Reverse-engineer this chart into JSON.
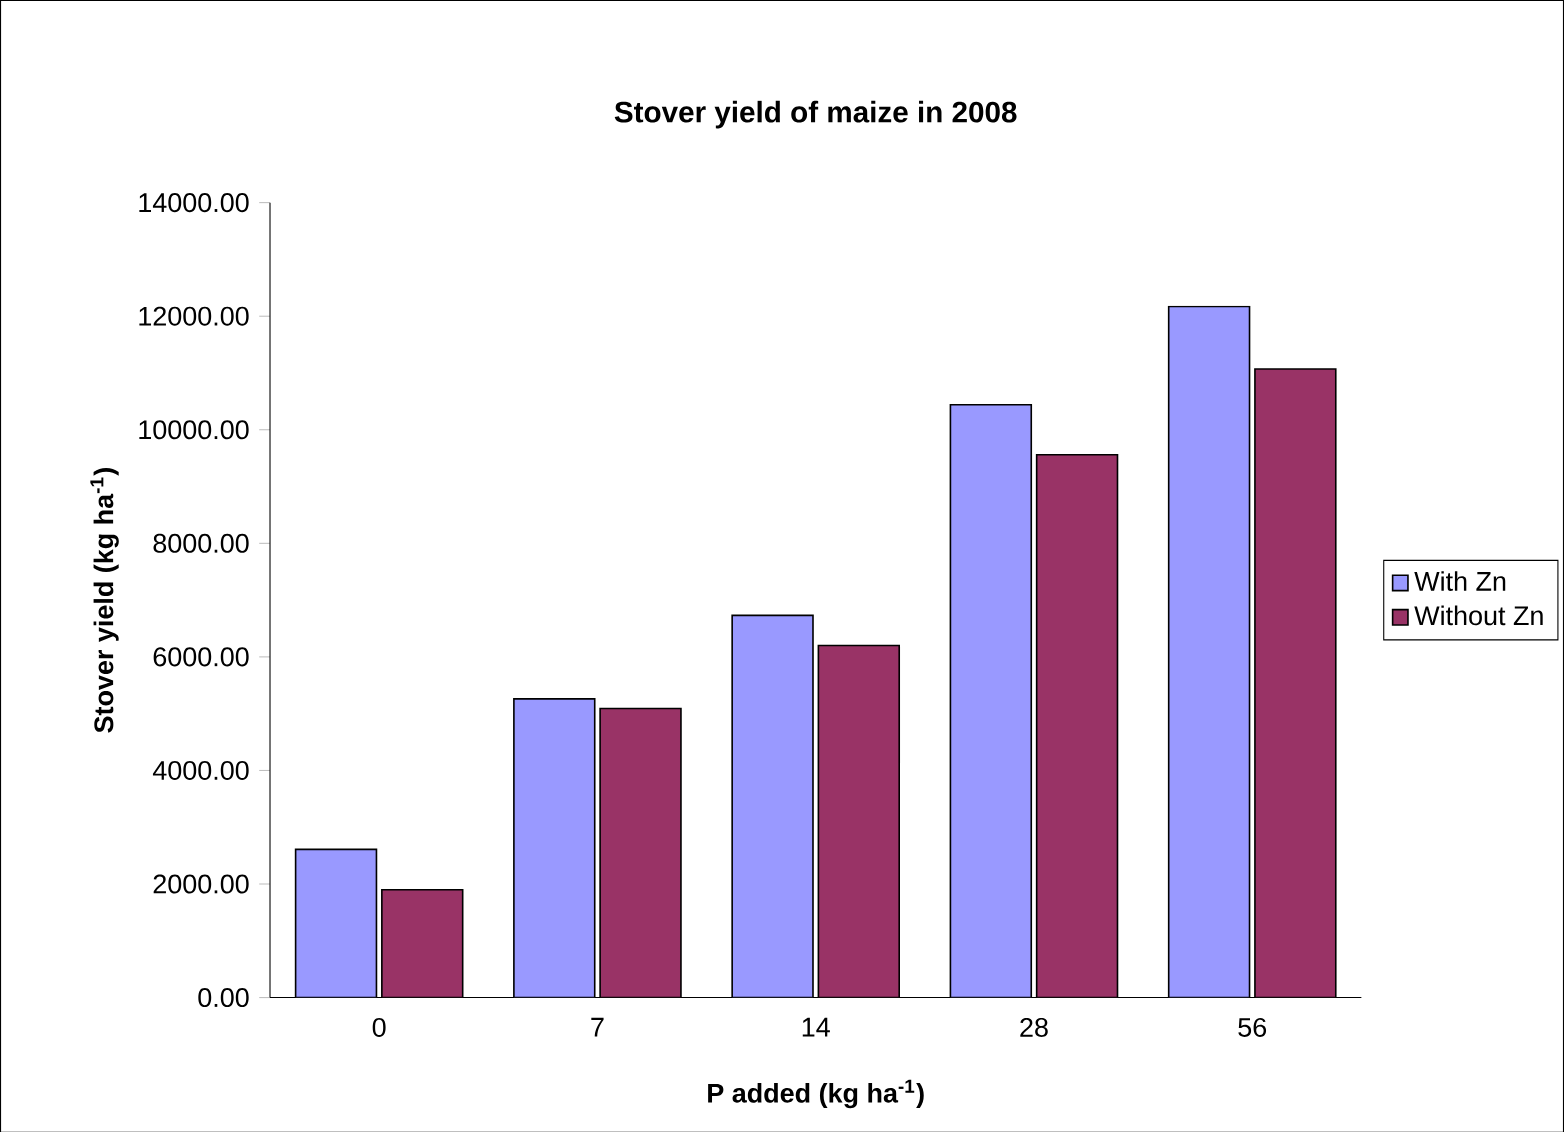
{
  "chart_data": {
    "type": "bar",
    "title": "Stover yield of maize in 2008",
    "xlabel": "P added (kg ha$^{-1}$)",
    "ylabel": "Stover yield (kg ha$^{-1}$)",
    "categories": [
      "0",
      "7",
      "14",
      "28",
      "56"
    ],
    "series": [
      {
        "name": "With Zn",
        "color": "#9999ff",
        "values": [
          2610,
          5260,
          6730,
          10440,
          12170
        ]
      },
      {
        "name": "Without Zn",
        "color": "#993366",
        "values": [
          1900,
          5090,
          6200,
          9560,
          11070
        ]
      }
    ],
    "ylim": [
      0,
      14000
    ],
    "yticks": [
      {
        "value": 0,
        "label": "0.00"
      },
      {
        "value": 2000,
        "label": "2000.00"
      },
      {
        "value": 4000,
        "label": "4000.00"
      },
      {
        "value": 6000,
        "label": "6000.00"
      },
      {
        "value": 8000,
        "label": "8000.00"
      },
      {
        "value": 10000,
        "label": "10000.00"
      },
      {
        "value": 12000,
        "label": "12000.00"
      },
      {
        "value": 14000,
        "label": "14000.00"
      }
    ],
    "grid": false,
    "legend": "right"
  }
}
